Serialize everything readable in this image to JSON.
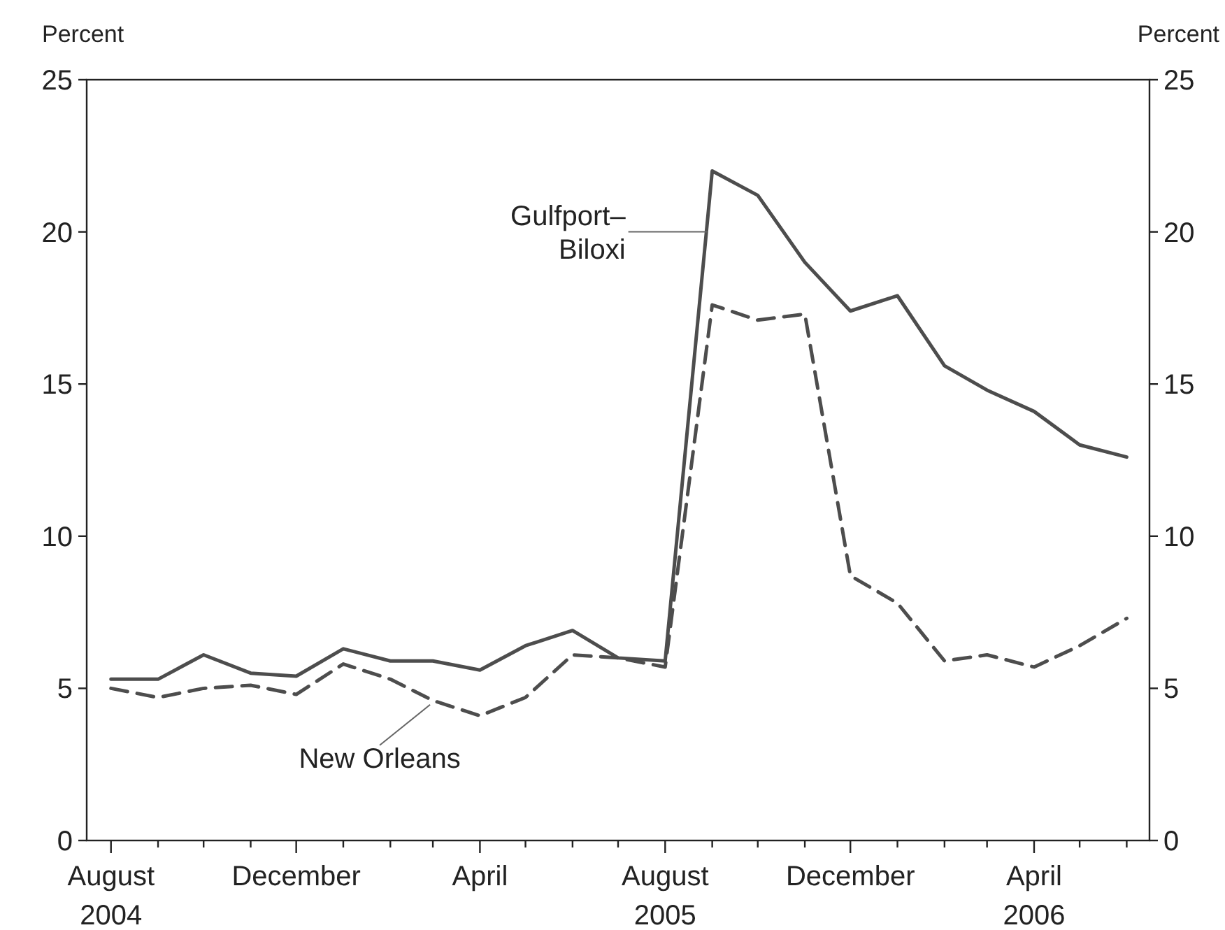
{
  "chart_data": {
    "type": "line",
    "ylabel": "Percent",
    "y2label": "Percent",
    "x": [
      "2004-08",
      "2004-09",
      "2004-10",
      "2004-11",
      "2004-12",
      "2005-01",
      "2005-02",
      "2005-03",
      "2005-04",
      "2005-05",
      "2005-06",
      "2005-07",
      "2005-08",
      "2005-09",
      "2005-10",
      "2005-11",
      "2005-12",
      "2006-01",
      "2006-02",
      "2006-03",
      "2006-04",
      "2006-05",
      "2006-06"
    ],
    "series": [
      {
        "color": "#4d4d4d",
        "line_style": "solid",
        "values": [
          5.3,
          5.3,
          6.1,
          5.5,
          5.4,
          6.3,
          5.9,
          5.9,
          5.6,
          6.4,
          6.9,
          6.0,
          5.9,
          22.0,
          21.2,
          19.0,
          17.4,
          17.9,
          15.6,
          14.8,
          14.1,
          13.0,
          12.6
        ]
      },
      {
        "color": "#4d4d4d",
        "line_style": "dashed",
        "values": [
          5.0,
          4.7,
          5.0,
          5.1,
          4.8,
          5.8,
          5.3,
          4.6,
          4.1,
          4.7,
          6.1,
          6.0,
          5.7,
          17.6,
          17.1,
          17.3,
          8.7,
          7.8,
          5.9,
          6.1,
          5.7,
          6.4,
          7.3
        ]
      }
    ],
    "xlim": [
      "2004-07-16",
      "2006-06-16"
    ],
    "xticks": [
      {
        "value": "2004-08",
        "label": "August\n2004"
      },
      {
        "value": "2004-09",
        "label": null
      },
      {
        "value": "2004-10",
        "label": null
      },
      {
        "value": "2004-11",
        "label": null
      },
      {
        "value": "2004-12",
        "label": "December"
      },
      {
        "value": "2005-01",
        "label": null
      },
      {
        "value": "2005-02",
        "label": null
      },
      {
        "value": "2005-03",
        "label": null
      },
      {
        "value": "2005-04",
        "label": "April"
      },
      {
        "value": "2005-05",
        "label": null
      },
      {
        "value": "2005-06",
        "label": null
      },
      {
        "value": "2005-07",
        "label": null
      },
      {
        "value": "2005-08",
        "label": "August\n2005"
      },
      {
        "value": "2005-09",
        "label": null
      },
      {
        "value": "2005-10",
        "label": null
      },
      {
        "value": "2005-11",
        "label": null
      },
      {
        "value": "2005-12",
        "label": "December"
      },
      {
        "value": "2006-01",
        "label": null
      },
      {
        "value": "2006-02",
        "label": null
      },
      {
        "value": "2006-03",
        "label": null
      },
      {
        "value": "2006-04",
        "label": "April\n2006"
      },
      {
        "value": "2006-05",
        "label": null
      },
      {
        "value": "2006-06",
        "label": null
      }
    ],
    "ylim": [
      0,
      25
    ],
    "yticks": [
      0,
      5,
      10,
      15,
      20,
      25
    ],
    "y2lim": [
      0,
      25
    ],
    "y2ticks": [
      0,
      5,
      10,
      15,
      20,
      25
    ],
    "grid": false,
    "annotations": [
      {
        "text": "Gulfport–\nBiloxi",
        "x": "2005-09",
        "y": 20
      },
      {
        "text": "New Orleans",
        "x": "2005-03",
        "y": 4.6
      }
    ]
  }
}
